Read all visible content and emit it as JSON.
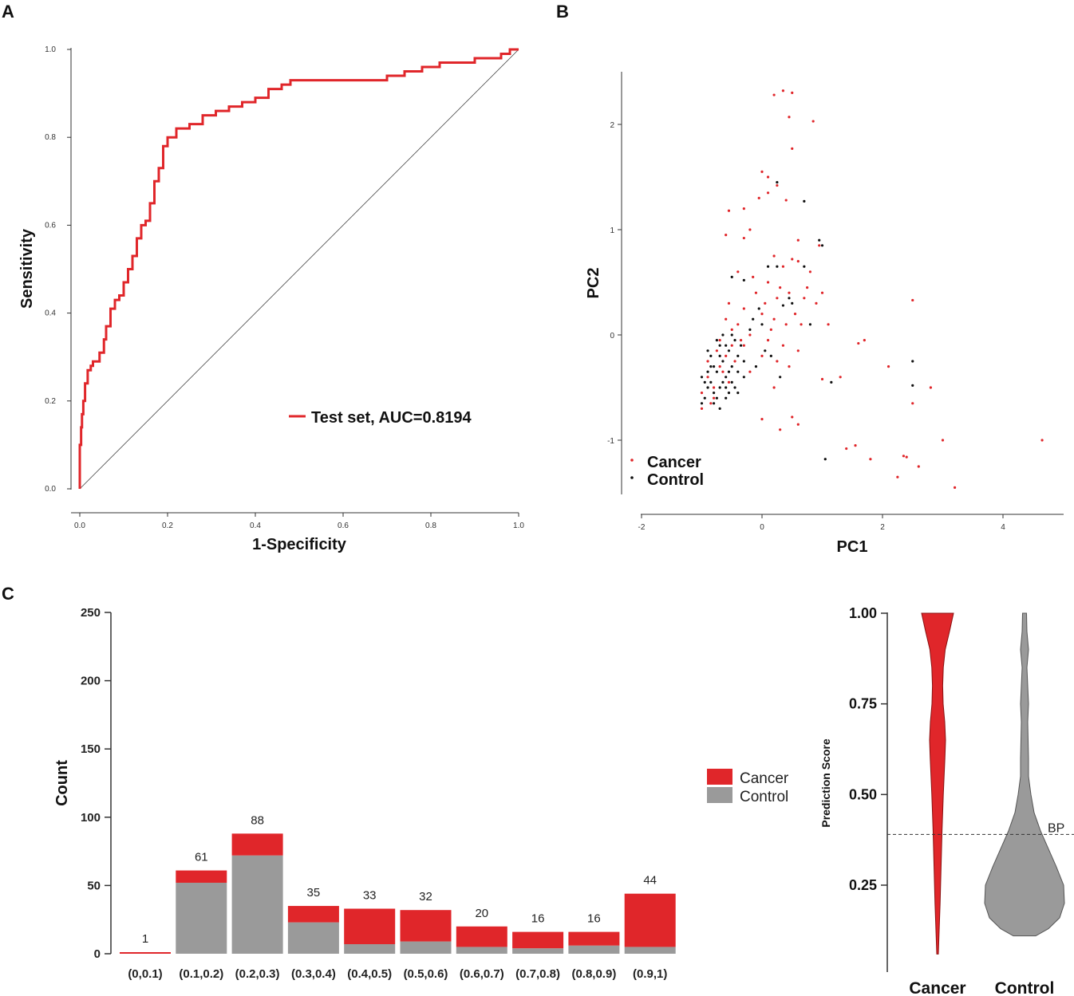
{
  "colors": {
    "cancer": "#e0262a",
    "control": "#9a9a9a",
    "roc": "#e0262a",
    "axis": "#222222"
  },
  "chart_data": [
    {
      "type": "line",
      "panel": "A",
      "xlabel": "1-Specificity",
      "ylabel": "Sensitivity",
      "xlim": [
        0,
        1
      ],
      "ylim": [
        0,
        1
      ],
      "xticks": [
        "0.0",
        "0.2",
        "0.4",
        "0.6",
        "0.8",
        "1.0"
      ],
      "yticks": [
        "0.0",
        "0.2",
        "0.4",
        "0.6",
        "0.8",
        "1.0"
      ],
      "legend": "Test set, AUC=0.8194",
      "series": [
        {
          "name": "Test set, AUC=0.8194",
          "x": [
            0,
            0.003,
            0.005,
            0.008,
            0.012,
            0.018,
            0.025,
            0.03,
            0.045,
            0.055,
            0.06,
            0.07,
            0.08,
            0.09,
            0.1,
            0.11,
            0.12,
            0.13,
            0.14,
            0.15,
            0.16,
            0.17,
            0.18,
            0.19,
            0.2,
            0.22,
            0.25,
            0.28,
            0.31,
            0.34,
            0.37,
            0.4,
            0.43,
            0.46,
            0.48,
            0.5,
            0.54,
            0.58,
            0.62,
            0.66,
            0.7,
            0.74,
            0.78,
            0.82,
            0.86,
            0.9,
            0.93,
            0.96,
            0.98,
            1.0
          ],
          "y": [
            0,
            0.1,
            0.14,
            0.17,
            0.2,
            0.24,
            0.27,
            0.28,
            0.29,
            0.31,
            0.34,
            0.37,
            0.41,
            0.43,
            0.44,
            0.47,
            0.5,
            0.53,
            0.57,
            0.6,
            0.61,
            0.65,
            0.7,
            0.73,
            0.78,
            0.8,
            0.82,
            0.83,
            0.85,
            0.86,
            0.87,
            0.88,
            0.89,
            0.91,
            0.92,
            0.93,
            0.93,
            0.93,
            0.93,
            0.93,
            0.93,
            0.94,
            0.95,
            0.96,
            0.97,
            0.97,
            0.98,
            0.98,
            0.99,
            1.0
          ]
        },
        {
          "name": "reference",
          "x": [
            0,
            1
          ],
          "y": [
            0,
            1
          ]
        }
      ]
    },
    {
      "type": "scatter",
      "panel": "B",
      "xlabel": "PC1",
      "ylabel": "PC2",
      "xlim": [
        -2,
        5
      ],
      "ylim": [
        -1.5,
        2.5
      ],
      "xticks": [
        "-2",
        "0",
        "2",
        "4"
      ],
      "yticks": [
        "-1",
        "0",
        "1",
        "2"
      ],
      "legend": [
        "Cancer",
        "Control"
      ],
      "series": [
        {
          "name": "Cancer",
          "points": [
            [
              0.2,
              2.28
            ],
            [
              0.35,
              2.32
            ],
            [
              0.5,
              2.3
            ],
            [
              0.45,
              2.07
            ],
            [
              0.85,
              2.03
            ],
            [
              0.5,
              1.77
            ],
            [
              0,
              1.55
            ],
            [
              0.1,
              1.5
            ],
            [
              0.25,
              1.42
            ],
            [
              -0.05,
              1.3
            ],
            [
              0.1,
              1.35
            ],
            [
              0.4,
              1.28
            ],
            [
              -0.55,
              1.18
            ],
            [
              -0.3,
              1.2
            ],
            [
              -0.2,
              1.0
            ],
            [
              -0.6,
              0.95
            ],
            [
              -0.3,
              0.92
            ],
            [
              0.6,
              0.9
            ],
            [
              0.95,
              0.85
            ],
            [
              0.2,
              0.75
            ],
            [
              0.35,
              0.65
            ],
            [
              0.5,
              0.72
            ],
            [
              0.6,
              0.7
            ],
            [
              -0.4,
              0.6
            ],
            [
              -0.15,
              0.55
            ],
            [
              0.1,
              0.5
            ],
            [
              0.3,
              0.45
            ],
            [
              0.45,
              0.4
            ],
            [
              0.7,
              0.35
            ],
            [
              -0.55,
              0.3
            ],
            [
              -0.3,
              0.25
            ],
            [
              0.0,
              0.2
            ],
            [
              0.2,
              0.15
            ],
            [
              0.4,
              0.1
            ],
            [
              -0.5,
              0.05
            ],
            [
              -0.2,
              0.0
            ],
            [
              0.1,
              -0.05
            ],
            [
              0.35,
              -0.1
            ],
            [
              0.6,
              -0.15
            ],
            [
              -0.7,
              -0.05
            ],
            [
              -0.3,
              -0.1
            ],
            [
              0.0,
              -0.2
            ],
            [
              0.25,
              -0.25
            ],
            [
              1.1,
              0.1
            ],
            [
              1.0,
              0.4
            ],
            [
              0.8,
              0.6
            ],
            [
              1.7,
              -0.05
            ],
            [
              1.6,
              -0.08
            ],
            [
              1.3,
              -0.4
            ],
            [
              1.0,
              -0.42
            ],
            [
              2.5,
              0.33
            ],
            [
              2.1,
              -0.3
            ],
            [
              2.8,
              -0.5
            ],
            [
              2.5,
              -0.65
            ],
            [
              0.0,
              -0.8
            ],
            [
              0.5,
              -0.78
            ],
            [
              0.6,
              -0.85
            ],
            [
              0.3,
              -0.9
            ],
            [
              1.4,
              -1.08
            ],
            [
              1.55,
              -1.05
            ],
            [
              1.8,
              -1.18
            ],
            [
              2.35,
              -1.15
            ],
            [
              2.4,
              -1.16
            ],
            [
              2.6,
              -1.25
            ],
            [
              2.25,
              -1.35
            ],
            [
              3.0,
              -1.0
            ],
            [
              3.2,
              -1.45
            ],
            [
              4.65,
              -1.0
            ],
            [
              -1.0,
              -0.7
            ],
            [
              -0.8,
              -0.6
            ],
            [
              -0.6,
              -0.2
            ],
            [
              -0.9,
              -0.4
            ],
            [
              -0.7,
              -0.3
            ],
            [
              -0.5,
              -0.1
            ],
            [
              -0.4,
              0.1
            ],
            [
              -0.6,
              0.15
            ],
            [
              -0.8,
              -0.5
            ],
            [
              -0.65,
              -0.35
            ],
            [
              -0.55,
              -0.45
            ],
            [
              -0.75,
              -0.15
            ],
            [
              -0.45,
              -0.25
            ],
            [
              -0.35,
              -0.05
            ],
            [
              0.15,
              0.05
            ],
            [
              0.05,
              0.3
            ],
            [
              -0.1,
              0.4
            ],
            [
              0.25,
              0.35
            ],
            [
              0.55,
              0.2
            ],
            [
              0.75,
              0.45
            ],
            [
              0.9,
              0.3
            ],
            [
              -0.2,
              -0.35
            ],
            [
              0.2,
              -0.5
            ],
            [
              0.45,
              -0.3
            ],
            [
              -1.0,
              -0.55
            ],
            [
              -0.85,
              -0.65
            ],
            [
              -0.9,
              -0.25
            ],
            [
              0.65,
              0.1
            ]
          ]
        },
        {
          "name": "Control",
          "points": [
            [
              0.25,
              1.45
            ],
            [
              0.7,
              1.27
            ],
            [
              0.95,
              0.9
            ],
            [
              1.0,
              0.85
            ],
            [
              0.1,
              0.65
            ],
            [
              0.25,
              0.65
            ],
            [
              0.7,
              0.65
            ],
            [
              -0.5,
              0.55
            ],
            [
              -0.3,
              0.52
            ],
            [
              0.45,
              0.35
            ],
            [
              0.5,
              0.3
            ],
            [
              0.35,
              0.28
            ],
            [
              -0.05,
              0.25
            ],
            [
              -0.15,
              0.15
            ],
            [
              0.8,
              0.1
            ],
            [
              1.15,
              -0.45
            ],
            [
              2.5,
              -0.48
            ],
            [
              2.5,
              -0.25
            ],
            [
              1.05,
              -1.18
            ],
            [
              -0.5,
              0.0
            ],
            [
              0.05,
              -0.15
            ],
            [
              0.3,
              -0.4
            ],
            [
              -0.4,
              -0.55
            ],
            [
              -0.6,
              -0.4
            ],
            [
              -0.7,
              -0.2
            ],
            [
              -0.8,
              -0.3
            ],
            [
              -0.9,
              -0.5
            ],
            [
              -0.95,
              -0.6
            ],
            [
              -1.0,
              -0.65
            ],
            [
              -0.85,
              -0.45
            ],
            [
              -0.75,
              -0.35
            ],
            [
              -0.65,
              -0.25
            ],
            [
              -0.55,
              -0.15
            ],
            [
              -0.45,
              -0.05
            ],
            [
              -0.7,
              -0.5
            ],
            [
              -0.6,
              -0.6
            ],
            [
              -0.8,
              -0.55
            ],
            [
              -0.9,
              -0.35
            ],
            [
              -0.7,
              -0.1
            ],
            [
              -0.5,
              -0.3
            ],
            [
              -0.4,
              -0.2
            ],
            [
              -0.6,
              -0.1
            ],
            [
              -0.85,
              -0.2
            ],
            [
              -0.75,
              -0.6
            ],
            [
              -0.65,
              -0.45
            ],
            [
              -0.55,
              -0.35
            ],
            [
              -0.95,
              -0.45
            ],
            [
              -1.0,
              -0.4
            ],
            [
              -0.8,
              -0.65
            ],
            [
              -0.7,
              -0.7
            ],
            [
              -0.6,
              -0.5
            ],
            [
              -0.5,
              -0.45
            ],
            [
              -0.4,
              -0.35
            ],
            [
              -0.3,
              -0.25
            ],
            [
              -0.9,
              -0.15
            ],
            [
              -0.75,
              -0.05
            ],
            [
              -0.65,
              0.0
            ],
            [
              -0.55,
              -0.55
            ],
            [
              -0.45,
              -0.5
            ],
            [
              -0.85,
              -0.3
            ],
            [
              -0.35,
              -0.1
            ],
            [
              -0.2,
              0.05
            ],
            [
              0.0,
              0.1
            ],
            [
              0.15,
              -0.2
            ],
            [
              -0.1,
              -0.3
            ],
            [
              -0.3,
              -0.4
            ]
          ]
        }
      ]
    },
    {
      "type": "bar",
      "panel": "C",
      "stacked": true,
      "ylabel": "Count",
      "ylim": [
        0,
        250
      ],
      "yticks": [
        "0",
        "50",
        "100",
        "150",
        "200",
        "250"
      ],
      "categories": [
        "(0,0.1)",
        "(0.1,0.2)",
        "(0.2,0.3)",
        "(0.3,0.4)",
        "(0.4,0.5)",
        "(0.5,0.6)",
        "(0.6,0.7)",
        "(0.7,0.8)",
        "(0.8,0.9)",
        "(0.9,1)"
      ],
      "totals": [
        1,
        61,
        88,
        35,
        33,
        32,
        20,
        16,
        16,
        44
      ],
      "total_labels": [
        "1",
        "61",
        "88",
        "35",
        "33",
        "32",
        "20",
        "16",
        "16",
        "44"
      ],
      "series": [
        {
          "name": "Control",
          "values": [
            0,
            52,
            72,
            23,
            7,
            9,
            5,
            4,
            6,
            5
          ]
        },
        {
          "name": "Cancer",
          "values": [
            1,
            9,
            16,
            12,
            26,
            23,
            15,
            12,
            10,
            39
          ]
        }
      ],
      "legend": [
        "Cancer",
        "Control"
      ]
    },
    {
      "type": "violin",
      "panel": "C",
      "ylabel": "Prediction Score",
      "yticks": [
        "0.25",
        "0.50",
        "0.75",
        "1.00"
      ],
      "categories": [
        "Cancer",
        "Control"
      ],
      "reference_line": {
        "label": "BP",
        "value": 0.39
      },
      "series": [
        {
          "name": "Cancer",
          "profile": [
            [
              0.06,
              0.05
            ],
            [
              0.1,
              0.08
            ],
            [
              0.15,
              0.12
            ],
            [
              0.2,
              0.16
            ],
            [
              0.3,
              0.22
            ],
            [
              0.4,
              0.28
            ],
            [
              0.5,
              0.36
            ],
            [
              0.6,
              0.46
            ],
            [
              0.65,
              0.5
            ],
            [
              0.7,
              0.45
            ],
            [
              0.75,
              0.35
            ],
            [
              0.8,
              0.32
            ],
            [
              0.85,
              0.36
            ],
            [
              0.9,
              0.48
            ],
            [
              0.95,
              0.75
            ],
            [
              1.0,
              1.0
            ]
          ]
        },
        {
          "name": "Control",
          "profile": [
            [
              0.11,
              0.28
            ],
            [
              0.13,
              0.6
            ],
            [
              0.16,
              0.88
            ],
            [
              0.2,
              1.0
            ],
            [
              0.25,
              0.98
            ],
            [
              0.3,
              0.8
            ],
            [
              0.35,
              0.6
            ],
            [
              0.4,
              0.4
            ],
            [
              0.45,
              0.24
            ],
            [
              0.5,
              0.16
            ],
            [
              0.55,
              0.1
            ],
            [
              0.6,
              0.1
            ],
            [
              0.7,
              0.08
            ],
            [
              0.75,
              0.1
            ],
            [
              0.8,
              0.08
            ],
            [
              0.85,
              0.06
            ],
            [
              0.9,
              0.1
            ],
            [
              0.95,
              0.06
            ],
            [
              1.0,
              0.05
            ]
          ]
        }
      ]
    }
  ],
  "panels": {
    "a": "A",
    "b": "B",
    "c": "C"
  }
}
